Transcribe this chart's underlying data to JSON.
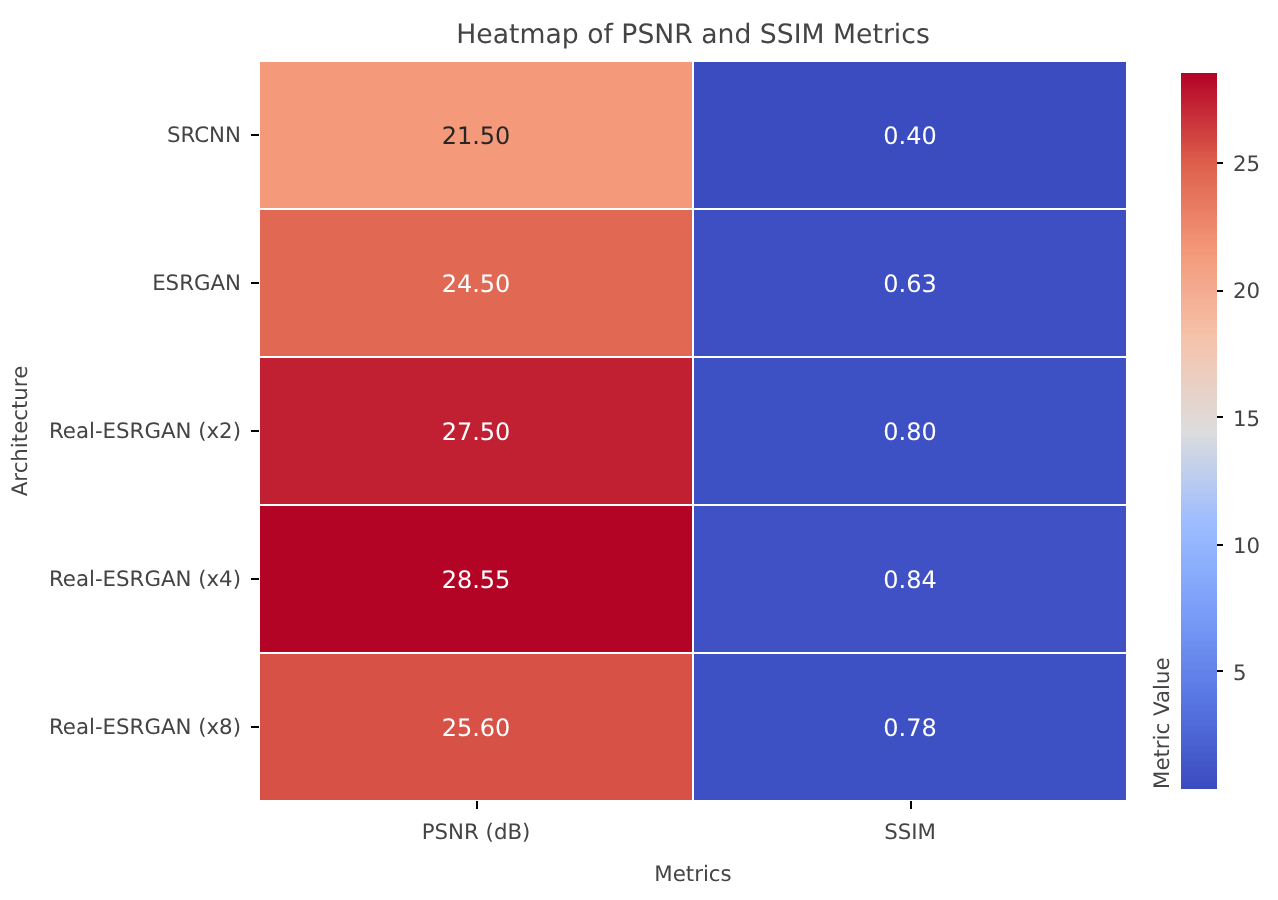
{
  "chart_data": {
    "type": "heatmap",
    "title": "Heatmap of PSNR and SSIM Metrics",
    "xlabel": "Metrics",
    "ylabel": "Architecture",
    "clabel": "Metric Value",
    "categories": [
      "PSNR (dB)",
      "SSIM"
    ],
    "y_categories": [
      "SRCNN",
      "ESRGAN",
      "Real-ESRGAN (x2)",
      "Real-ESRGAN (x4)",
      "Real-ESRGAN (x8)"
    ],
    "cells": [
      [
        21.5,
        0.4
      ],
      [
        24.5,
        0.63
      ],
      [
        27.5,
        0.8
      ],
      [
        28.55,
        0.84
      ],
      [
        25.6,
        0.78
      ]
    ],
    "cell_labels": [
      [
        "21.50",
        "0.40"
      ],
      [
        "24.50",
        "0.63"
      ],
      [
        "27.50",
        "0.80"
      ],
      [
        "28.55",
        "0.84"
      ],
      [
        "25.60",
        "0.78"
      ]
    ],
    "clim": [
      0.4,
      28.55
    ],
    "cticks": [
      5,
      10,
      15,
      20,
      25
    ]
  }
}
